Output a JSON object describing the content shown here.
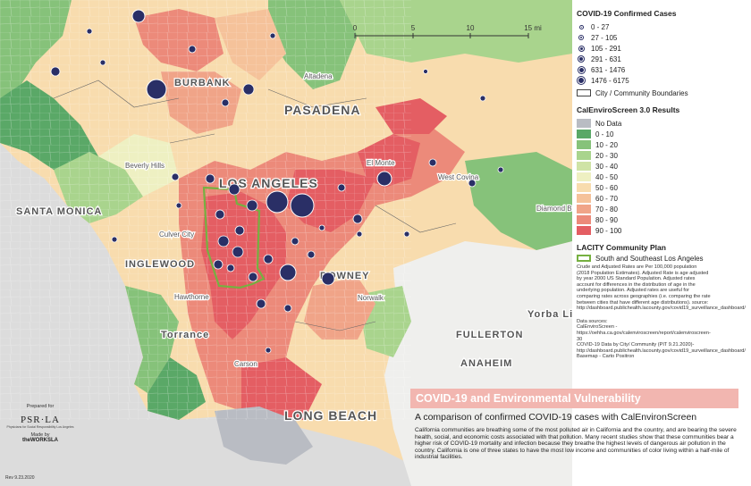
{
  "map": {
    "places": [
      "BURBANK",
      "Altadena",
      "PASADENA",
      "SANTA MONICA",
      "LOS ANGELES",
      "West Covina",
      "Diamond Ba",
      "INGLEWOOD",
      "DOWNEY",
      "Norwalk",
      "Torrance",
      "Carson",
      "FULLERTON",
      "Yorba Linda",
      "ANAHEIM",
      "LONG BEACH",
      "Culver City",
      "Beverly Hills",
      "El Monte",
      "Hawthorne"
    ],
    "scale": {
      "labels": [
        "0",
        "5",
        "10",
        "15 mi"
      ]
    }
  },
  "legend": {
    "cases": {
      "title": "COVID-19 Confirmed Cases",
      "classes": [
        "0 - 27",
        "27 - 105",
        "105 - 291",
        "291 - 631",
        "631 - 1476",
        "1476 - 6175"
      ],
      "boundary_label": "City / Community Boundaries",
      "dot_color": "#2a2f66"
    },
    "calenviro": {
      "title": "CalEnviroScreen 3.0 Results",
      "classes": [
        "No Data",
        "0 - 10",
        "10 - 20",
        "20 - 30",
        "30 - 40",
        "40 - 50",
        "50 - 60",
        "60 - 70",
        "70 - 80",
        "80 - 90",
        "90 - 100"
      ],
      "colors": [
        "#b9bcc3",
        "#5aa867",
        "#86c27a",
        "#a9d48d",
        "#cfe3a6",
        "#eef0c2",
        "#f8dcae",
        "#f5c29a",
        "#f0a488",
        "#ec8a7a",
        "#e45e63"
      ]
    },
    "plan": {
      "title": "LACITY Community Plan",
      "item": "South and Southeast Los Angeles",
      "color": "#76b041"
    },
    "notes": "Crude and Adjusted Rates are Per 100,000 population (2018 Population Estimates). Adjusted Rate is age adjusted by year 2000 US Standard Population. Adjusted rates account for differences in the distribution of age in the underlying population. Adjusted rates are useful for comparing rates across geographies (i.e. comparing the rate between cities that have different age distributions). source: http://dashboard.publichealth.lacounty.gov/covid19_surveillance_dashboard/",
    "sources_title": "Data sources:",
    "sources": [
      "CalEnviroScreen - https://oehha.ca.gov/calenviroscreen/report/calenviroscreen-30",
      "COVID-19 Data by City/ Community (PIT 9.21.2020)- http://dashboard.publichealth.lacounty.gov/covid19_surveillance_dashboard/",
      "Basemap - Carto Positron"
    ]
  },
  "title": {
    "banner": "COVID-19 and Environmental Vulnerability",
    "subtitle": "A comparison of confirmed COVID-19 cases with CalEnvironScreen",
    "description": "California communities are breathing some of the most polluted air in California and the country, and are bearing the severe health, social, and economic costs associated with that pollution. Many recent studies show that these communities bear a higher risk of COVID-19 mortality and infection because they breathe the highest levels of dangerous air pollution in the country. California is one of three states to have the most low income and communities of color living within a half-mile of industrial facilities."
  },
  "credits": {
    "prepared_for": "Prepared for",
    "logo": "PSR·LA",
    "logo_sub": "Physicians for Social Responsibility Los Angeles",
    "made_by": "Made by",
    "works": "theWORKSLA",
    "revision": "Rev 9.23.2020"
  }
}
